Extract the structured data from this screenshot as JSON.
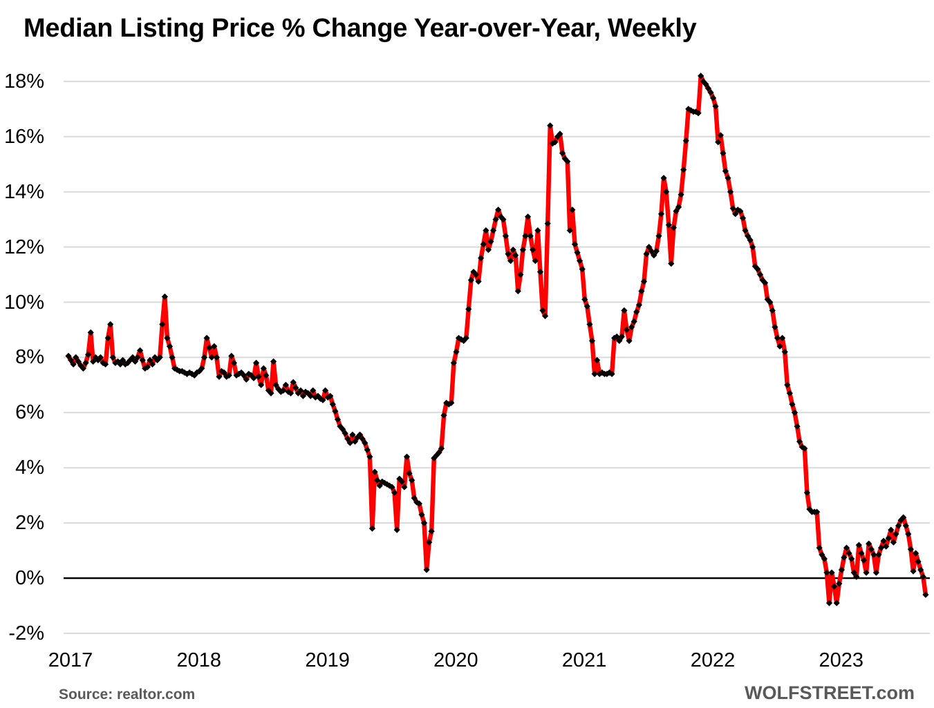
{
  "chart_data": {
    "type": "line",
    "title": "Median Listing Price % Change Year-over-Year, Weekly",
    "source_note": "Source: realtor.com",
    "brand": "WOLFSTREET.com",
    "grid_color": "#d9d9d9",
    "zero_line_color": "#000000",
    "x_axis": {
      "tick_labels": [
        "2017",
        "2018",
        "2019",
        "2020",
        "2021",
        "2022",
        "2023"
      ],
      "tick_years": [
        2017,
        2018,
        2019,
        2020,
        2021,
        2022,
        2023
      ]
    },
    "y_axis": {
      "unit": "%",
      "tick_labels": [
        "18%",
        "16%",
        "14%",
        "12%",
        "10%",
        "8%",
        "6%",
        "4%",
        "2%",
        "0%",
        "-2%"
      ],
      "tick_values": [
        18,
        16,
        14,
        12,
        10,
        8,
        6,
        4,
        2,
        0,
        -2
      ],
      "min": -2,
      "max": 18
    },
    "series": [
      {
        "name": "Median listing price % change year-over-year (weekly)",
        "color": "#fe0000",
        "marker": "diamond",
        "marker_color": "#000000",
        "cadence": "weekly",
        "start_year": 2017,
        "points_per_year": 52,
        "values": [
          8.05,
          7.9,
          7.75,
          8.0,
          7.85,
          7.7,
          7.6,
          7.8,
          8.1,
          8.9,
          7.85,
          8.0,
          7.9,
          8.0,
          7.8,
          7.75,
          8.7,
          9.2,
          8.0,
          7.8,
          7.85,
          7.75,
          7.9,
          7.75,
          7.8,
          7.9,
          8.0,
          7.85,
          8.0,
          8.25,
          7.9,
          7.6,
          7.65,
          7.9,
          7.75,
          8.0,
          7.9,
          8.0,
          9.2,
          10.2,
          8.7,
          8.4,
          8.0,
          7.6,
          7.55,
          7.5,
          7.5,
          7.45,
          7.4,
          7.45,
          7.4,
          7.35,
          7.45,
          7.5,
          7.6,
          8.0,
          8.7,
          8.35,
          8.0,
          8.4,
          8.0,
          7.3,
          7.5,
          7.45,
          7.3,
          7.35,
          8.05,
          7.8,
          7.35,
          7.4,
          7.45,
          7.35,
          7.2,
          7.4,
          7.35,
          7.25,
          7.8,
          7.3,
          7.0,
          7.6,
          7.35,
          6.8,
          6.7,
          7.85,
          7.0,
          6.85,
          6.75,
          6.8,
          7.0,
          6.75,
          6.7,
          7.1,
          6.9,
          6.7,
          6.8,
          6.6,
          6.75,
          6.7,
          6.6,
          6.8,
          6.55,
          6.6,
          6.5,
          6.45,
          6.8,
          6.55,
          6.6,
          6.3,
          6.05,
          5.75,
          5.5,
          5.4,
          5.25,
          5.05,
          4.9,
          5.2,
          4.95,
          5.1,
          5.2,
          5.05,
          4.9,
          4.65,
          4.4,
          1.8,
          3.85,
          3.55,
          3.35,
          3.5,
          3.45,
          3.4,
          3.35,
          3.3,
          3.1,
          1.75,
          3.6,
          3.5,
          3.3,
          4.4,
          3.8,
          3.55,
          2.9,
          2.75,
          2.7,
          2.3,
          2.0,
          0.3,
          1.3,
          1.7,
          4.35,
          4.45,
          4.55,
          4.7,
          5.9,
          6.35,
          6.3,
          6.35,
          7.8,
          8.2,
          8.7,
          8.65,
          8.6,
          8.7,
          9.75,
          10.8,
          11.1,
          11.0,
          10.75,
          11.6,
          12.1,
          12.6,
          11.9,
          12.2,
          12.6,
          13.0,
          13.35,
          13.1,
          13.0,
          12.4,
          11.75,
          11.5,
          11.9,
          11.7,
          10.4,
          11.0,
          11.9,
          12.4,
          13.1,
          12.4,
          11.9,
          11.5,
          12.6,
          11.1,
          9.7,
          9.5,
          12.85,
          16.4,
          15.75,
          15.8,
          16.0,
          16.1,
          15.4,
          15.2,
          15.1,
          12.6,
          13.35,
          12.1,
          11.8,
          11.5,
          11.2,
          10.1,
          9.85,
          9.2,
          8.6,
          7.4,
          7.9,
          7.4,
          7.45,
          7.4,
          7.4,
          7.45,
          7.4,
          8.7,
          8.75,
          8.6,
          8.75,
          9.7,
          9.0,
          8.6,
          9.1,
          9.3,
          9.65,
          9.9,
          10.4,
          10.75,
          11.75,
          12.0,
          11.85,
          11.7,
          11.85,
          12.4,
          13.2,
          14.5,
          14.0,
          12.8,
          11.4,
          12.7,
          13.3,
          13.45,
          13.9,
          14.8,
          15.85,
          17.0,
          16.95,
          16.9,
          16.9,
          16.85,
          18.2,
          18.0,
          17.9,
          17.75,
          17.6,
          17.4,
          17.1,
          15.8,
          16.05,
          15.4,
          14.75,
          14.5,
          14.0,
          13.4,
          13.2,
          13.35,
          13.3,
          13.05,
          12.6,
          12.4,
          12.25,
          12.0,
          11.3,
          11.2,
          11.0,
          10.8,
          10.7,
          10.1,
          10.0,
          9.7,
          9.1,
          8.7,
          8.4,
          8.7,
          8.2,
          7.0,
          6.7,
          6.3,
          6.0,
          5.5,
          4.95,
          4.75,
          4.7,
          3.1,
          2.5,
          2.4,
          2.4,
          2.4,
          1.1,
          0.85,
          0.7,
          0.2,
          -0.9,
          0.2,
          -0.3,
          -0.9,
          -0.2,
          0.3,
          0.75,
          1.1,
          0.9,
          0.7,
          0.2,
          0.05,
          1.2,
          0.9,
          0.65,
          0.2,
          1.25,
          1.05,
          0.85,
          0.2,
          0.85,
          1.1,
          1.35,
          1.15,
          1.45,
          1.75,
          1.3,
          1.6,
          1.9,
          2.1,
          2.2,
          1.9,
          1.6,
          1.05,
          0.25,
          0.9,
          0.6,
          0.3,
          0.05,
          -0.6
        ]
      }
    ]
  }
}
